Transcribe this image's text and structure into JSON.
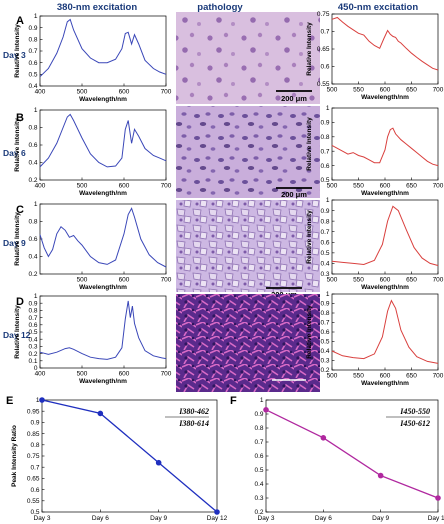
{
  "headers": {
    "col1": "380-nm excitation",
    "col2": "pathology",
    "col3": "450-nm excitation"
  },
  "row_labels": [
    "Day 3",
    "Day 6",
    "Day 9",
    "Day 12"
  ],
  "panel_letters": [
    "A",
    "B",
    "C",
    "D",
    "E",
    "F"
  ],
  "spectrum_xlabel": "Wavelength/nm",
  "spectrum_ylabel": "Relative Intensity",
  "scale_bar_label": "200 μm",
  "colors": {
    "blue_spectrum": "#3a47b8",
    "red_spectrum": "#d9403e",
    "ratio_380": "#1f2fbf",
    "ratio_450": "#b0289f",
    "header": "#1a3a7a"
  },
  "chart_data": [
    {
      "panel": "A",
      "type": "line",
      "xlim": [
        400,
        700
      ],
      "ylim": [
        0.4,
        1.0
      ],
      "xticks": [
        400,
        500,
        600,
        700
      ],
      "yticks": [
        0.4,
        0.5,
        0.6,
        0.7,
        0.8,
        0.9,
        1
      ],
      "series": [
        {
          "x": [
            400,
            420,
            440,
            455,
            465,
            472,
            480,
            500,
            520,
            540,
            560,
            580,
            595,
            603,
            610,
            618,
            625,
            635,
            650,
            670,
            685,
            700
          ],
          "y": [
            0.48,
            0.55,
            0.68,
            0.82,
            0.95,
            0.97,
            0.88,
            0.72,
            0.64,
            0.6,
            0.6,
            0.63,
            0.72,
            0.85,
            0.86,
            0.76,
            0.84,
            0.76,
            0.62,
            0.55,
            0.52,
            0.5
          ]
        }
      ]
    },
    {
      "panel": "A",
      "type": "line",
      "xlim": [
        500,
        700
      ],
      "ylim": [
        0.55,
        0.75
      ],
      "xticks": [
        500,
        550,
        600,
        650,
        700
      ],
      "yticks": [
        0.55,
        0.6,
        0.65,
        0.7,
        0.75
      ],
      "series": [
        {
          "x": [
            500,
            510,
            520,
            530,
            540,
            550,
            560,
            570,
            580,
            590,
            598,
            605,
            610,
            615,
            620,
            625,
            630,
            640,
            650,
            660,
            670,
            680,
            690,
            700
          ],
          "y": [
            0.735,
            0.74,
            0.727,
            0.715,
            0.705,
            0.695,
            0.69,
            0.672,
            0.66,
            0.652,
            0.68,
            0.703,
            0.692,
            0.686,
            0.683,
            0.672,
            0.667,
            0.652,
            0.638,
            0.626,
            0.615,
            0.605,
            0.595,
            0.59
          ]
        }
      ]
    },
    {
      "panel": "B",
      "type": "line",
      "xlim": [
        400,
        700
      ],
      "ylim": [
        0.2,
        1.0
      ],
      "xticks": [
        400,
        500,
        600,
        700
      ],
      "yticks": [
        0.2,
        0.4,
        0.6,
        0.8,
        1
      ],
      "series": [
        {
          "x": [
            400,
            420,
            440,
            455,
            465,
            472,
            480,
            500,
            520,
            540,
            560,
            580,
            595,
            603,
            610,
            618,
            625,
            635,
            650,
            670,
            685,
            700
          ],
          "y": [
            0.35,
            0.45,
            0.62,
            0.8,
            0.92,
            0.95,
            0.88,
            0.68,
            0.5,
            0.4,
            0.35,
            0.36,
            0.45,
            0.78,
            0.88,
            0.62,
            0.78,
            0.7,
            0.56,
            0.48,
            0.45,
            0.42
          ]
        }
      ]
    },
    {
      "panel": "B",
      "type": "line",
      "xlim": [
        500,
        700
      ],
      "ylim": [
        0.5,
        1.0
      ],
      "xticks": [
        500,
        550,
        600,
        650,
        700
      ],
      "yticks": [
        0.5,
        0.6,
        0.7,
        0.8,
        0.9,
        1
      ],
      "series": [
        {
          "x": [
            500,
            510,
            520,
            530,
            540,
            550,
            560,
            570,
            580,
            590,
            600,
            605,
            610,
            615,
            620,
            630,
            640,
            650,
            660,
            670,
            680,
            690,
            700
          ],
          "y": [
            0.74,
            0.72,
            0.7,
            0.68,
            0.69,
            0.67,
            0.66,
            0.64,
            0.62,
            0.62,
            0.71,
            0.8,
            0.85,
            0.86,
            0.82,
            0.78,
            0.75,
            0.72,
            0.69,
            0.66,
            0.63,
            0.61,
            0.6
          ]
        }
      ]
    },
    {
      "panel": "C",
      "type": "line",
      "xlim": [
        400,
        700
      ],
      "ylim": [
        0.2,
        1.0
      ],
      "xticks": [
        500,
        600,
        700
      ],
      "yticks": [
        0.2,
        0.4,
        0.6,
        0.8,
        1
      ],
      "series": [
        {
          "x": [
            400,
            410,
            420,
            430,
            440,
            450,
            460,
            470,
            480,
            490,
            500,
            520,
            540,
            560,
            580,
            600,
            610,
            618,
            625,
            640,
            660,
            680,
            700
          ],
          "y": [
            0.65,
            0.5,
            0.4,
            0.48,
            0.66,
            0.74,
            0.7,
            0.62,
            0.64,
            0.58,
            0.53,
            0.4,
            0.33,
            0.31,
            0.36,
            0.66,
            0.88,
            0.95,
            0.85,
            0.6,
            0.42,
            0.33,
            0.28
          ]
        }
      ]
    },
    {
      "panel": "C",
      "type": "line",
      "xlim": [
        500,
        700
      ],
      "ylim": [
        0.3,
        1.0
      ],
      "xticks": [
        500,
        550,
        600,
        650,
        700
      ],
      "yticks": [
        0.3,
        0.4,
        0.5,
        0.6,
        0.7,
        0.8,
        0.9,
        1
      ],
      "series": [
        {
          "x": [
            500,
            520,
            540,
            560,
            580,
            595,
            605,
            615,
            625,
            640,
            655,
            670,
            685,
            700
          ],
          "y": [
            0.42,
            0.41,
            0.4,
            0.39,
            0.43,
            0.58,
            0.8,
            0.94,
            0.9,
            0.72,
            0.55,
            0.45,
            0.4,
            0.38
          ]
        }
      ]
    },
    {
      "panel": "D",
      "type": "line",
      "xlim": [
        400,
        700
      ],
      "ylim": [
        0.0,
        1.0
      ],
      "xticks": [
        400,
        500,
        600,
        700
      ],
      "yticks": [
        0,
        0.1,
        0.2,
        0.3,
        0.4,
        0.5,
        0.6,
        0.7,
        0.8,
        0.9,
        1
      ],
      "series": [
        {
          "x": [
            400,
            420,
            440,
            460,
            470,
            480,
            500,
            520,
            540,
            560,
            580,
            595,
            603,
            610,
            615,
            620,
            625,
            635,
            650,
            670,
            690,
            700
          ],
          "y": [
            0.22,
            0.19,
            0.22,
            0.27,
            0.28,
            0.26,
            0.2,
            0.15,
            0.13,
            0.12,
            0.15,
            0.28,
            0.68,
            0.93,
            0.7,
            0.86,
            0.62,
            0.42,
            0.24,
            0.17,
            0.14,
            0.13
          ]
        }
      ]
    },
    {
      "panel": "D",
      "type": "line",
      "xlim": [
        500,
        700
      ],
      "ylim": [
        0.2,
        1.0
      ],
      "xticks": [
        500,
        550,
        600,
        650,
        700
      ],
      "yticks": [
        0.2,
        0.3,
        0.4,
        0.5,
        0.6,
        0.7,
        0.8,
        0.9,
        1
      ],
      "series": [
        {
          "x": [
            500,
            520,
            540,
            560,
            580,
            595,
            605,
            612,
            620,
            630,
            645,
            660,
            680,
            700
          ],
          "y": [
            0.4,
            0.35,
            0.33,
            0.32,
            0.37,
            0.55,
            0.82,
            0.93,
            0.85,
            0.62,
            0.44,
            0.34,
            0.29,
            0.27
          ]
        }
      ]
    },
    {
      "panel": "E",
      "type": "line",
      "ylabel": "Peak Intensity Ratio",
      "categories": [
        "Day 3",
        "Day 6",
        "Day 9",
        "Day 12"
      ],
      "ylim": [
        0.5,
        1.0
      ],
      "yticks": [
        0.5,
        0.55,
        0.6,
        0.65,
        0.7,
        0.75,
        0.8,
        0.85,
        0.9,
        0.95,
        1
      ],
      "annotation": {
        "numerator": "I380-462",
        "denominator": "I380-614"
      },
      "series": [
        {
          "values": [
            1.0,
            0.94,
            0.72,
            0.5
          ]
        }
      ]
    },
    {
      "panel": "F",
      "type": "line",
      "categories": [
        "Day 3",
        "Day 6",
        "Day 9",
        "Day 12"
      ],
      "ylim": [
        0.2,
        1.0
      ],
      "yticks": [
        0.2,
        0.3,
        0.4,
        0.5,
        0.6,
        0.7,
        0.8,
        0.9,
        1
      ],
      "annotation": {
        "numerator": "I450-550",
        "denominator": "I450-612"
      },
      "series": [
        {
          "values": [
            0.93,
            0.73,
            0.46,
            0.3
          ]
        }
      ]
    }
  ]
}
